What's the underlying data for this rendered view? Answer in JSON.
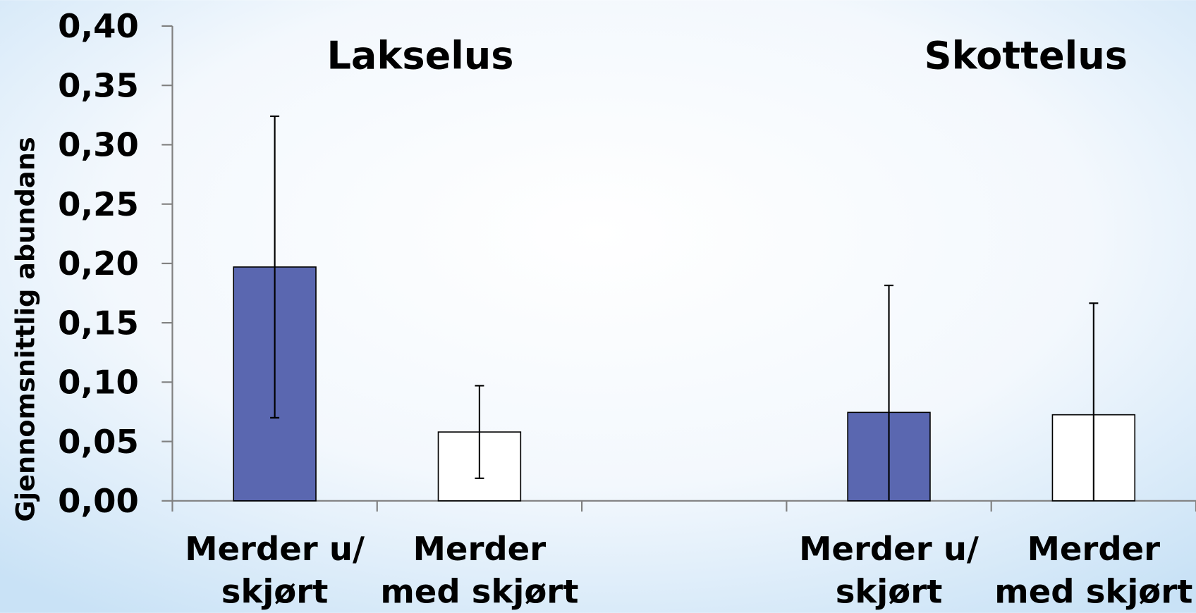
{
  "chart_data": {
    "type": "bar",
    "ylabel": "Gjennomsnittlig abundans",
    "groups": [
      "Lakselus",
      "Skottelus"
    ],
    "categories": [
      [
        "Merder u/",
        "skjørt"
      ],
      [
        "Merder",
        "med skjørt"
      ],
      null,
      [
        "Merder u/",
        "skjørt"
      ],
      [
        "Merder",
        "med skjørt"
      ]
    ],
    "values": [
      0.197,
      0.058,
      null,
      0.0745,
      0.0725
    ],
    "errors": [
      0.127,
      0.039,
      null,
      0.107,
      0.094
    ],
    "colors": [
      "#5a67b0",
      "#ffffff",
      null,
      "#5a67b0",
      "#ffffff"
    ],
    "ylim": [
      0,
      0.4
    ],
    "yticks": [
      {
        "value": 0,
        "label": "0,00"
      },
      {
        "value": 0.05,
        "label": "0,05"
      },
      {
        "value": 0.1,
        "label": "0,10"
      },
      {
        "value": 0.15,
        "label": "0,15"
      },
      {
        "value": 0.2,
        "label": "0,20"
      },
      {
        "value": 0.25,
        "label": "0,25"
      },
      {
        "value": 0.3,
        "label": "0,30"
      },
      {
        "value": 0.35,
        "label": "0,35"
      },
      {
        "value": 0.4,
        "label": "0,40"
      }
    ]
  }
}
